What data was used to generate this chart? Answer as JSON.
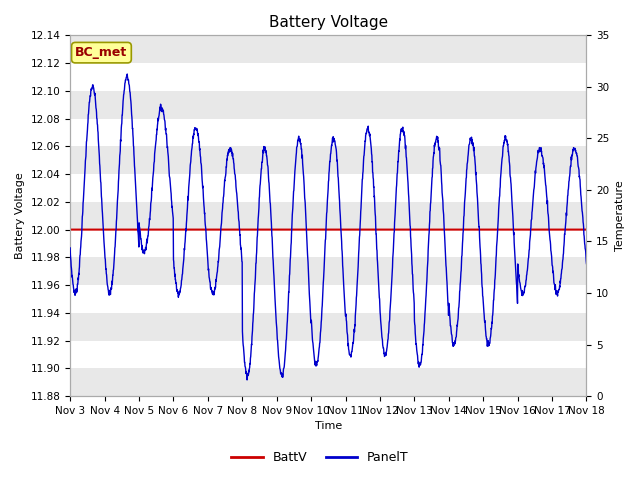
{
  "title": "Battery Voltage",
  "ylabel_left": "Battery Voltage",
  "ylabel_right": "Temperature",
  "xlabel": "Time",
  "ylim_left": [
    11.88,
    12.14
  ],
  "ylim_right": [
    0,
    35
  ],
  "yticks_left": [
    11.88,
    11.9,
    11.92,
    11.94,
    11.96,
    11.98,
    12.0,
    12.02,
    12.04,
    12.06,
    12.08,
    12.1,
    12.12,
    12.14
  ],
  "yticks_right": [
    0,
    5,
    10,
    15,
    20,
    25,
    30,
    35
  ],
  "batt_voltage": 12.0,
  "line_color_batt": "#cc0000",
  "line_color_panel": "#0000cc",
  "fig_bg_color": "#ffffff",
  "plot_bg_color": "#ffffff",
  "grid_color": "#cccccc",
  "band_color": "#e8e8e8",
  "annotation_text": "BC_met",
  "annotation_bg": "#ffff99",
  "annotation_fg": "#990000",
  "annotation_border": "#999900",
  "title_fontsize": 11,
  "axis_label_fontsize": 8,
  "tick_fontsize": 7.5,
  "legend_fontsize": 9,
  "day_peaks": [
    30,
    31,
    28,
    26,
    24,
    24,
    25,
    25,
    26,
    26,
    25,
    25,
    25,
    24,
    24,
    24
  ],
  "day_troughs": [
    10,
    10,
    14,
    10,
    10,
    2,
    2,
    3,
    4,
    4,
    3,
    5,
    5,
    10,
    10,
    10
  ],
  "num_points": 2000
}
